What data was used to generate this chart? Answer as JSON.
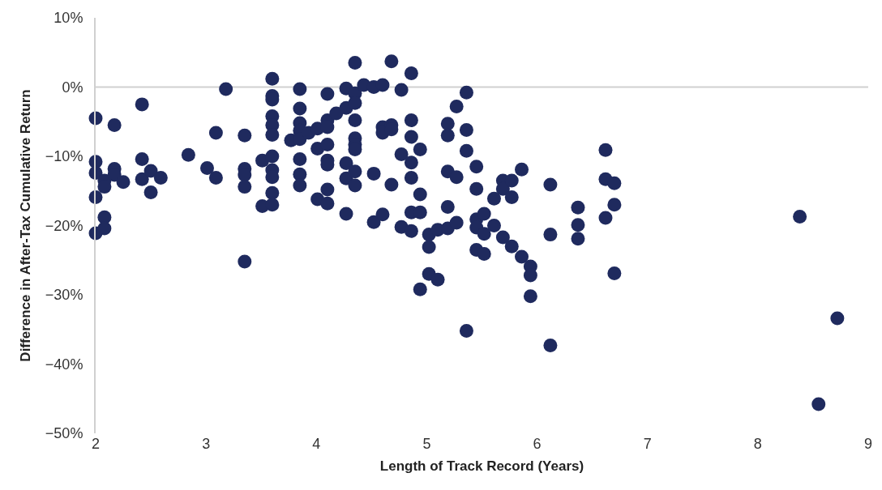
{
  "chart_data": {
    "type": "scatter",
    "xlabel": "Length of Track Record (Years)",
    "ylabel": "Difference in After-Tax Cumulative Return",
    "xlim": [
      2,
      9
    ],
    "xticks": [
      2,
      3,
      4,
      5,
      6,
      7,
      8,
      9
    ],
    "ylim": [
      -50,
      10
    ],
    "yticks": [
      {
        "value": 10,
        "label": "10%"
      },
      {
        "value": 0,
        "label": "0%"
      },
      {
        "value": -10,
        "label": "−10%"
      },
      {
        "value": -20,
        "label": "−20%"
      },
      {
        "value": -30,
        "label": "−30%"
      },
      {
        "value": -40,
        "label": "−40%"
      },
      {
        "value": -50,
        "label": "−50%"
      }
    ],
    "grid": false,
    "marker": "circle",
    "ref_lines": [
      {
        "axis": "y",
        "value": 0,
        "color": "#d0d0d0"
      }
    ],
    "series": [
      {
        "color": "#1f2a5e",
        "x": [
          2.0,
          2.0,
          2.0,
          2.0,
          2.0,
          2.08,
          2.08,
          2.08,
          2.08,
          2.17,
          2.17,
          2.17,
          2.25,
          2.42,
          2.42,
          2.42,
          2.5,
          2.5,
          2.59,
          2.84,
          3.01,
          3.09,
          3.09,
          3.18,
          3.35,
          3.35,
          3.35,
          3.35,
          3.35,
          3.51,
          3.51,
          3.6,
          3.6,
          3.6,
          3.6,
          3.6,
          3.6,
          3.6,
          3.6,
          3.6,
          3.6,
          3.6,
          3.77,
          3.85,
          3.85,
          3.85,
          3.85,
          3.85,
          3.85,
          3.85,
          3.85,
          3.93,
          4.01,
          4.01,
          4.01,
          4.1,
          4.1,
          4.1,
          4.1,
          4.1,
          4.1,
          4.1,
          4.1,
          4.18,
          4.27,
          4.27,
          4.27,
          4.27,
          4.27,
          4.35,
          4.35,
          4.35,
          4.35,
          4.35,
          4.35,
          4.35,
          4.35,
          4.35,
          4.43,
          4.52,
          4.52,
          4.52,
          4.6,
          4.6,
          4.6,
          4.6,
          4.68,
          4.68,
          4.68,
          4.68,
          4.77,
          4.77,
          4.77,
          4.86,
          4.86,
          4.86,
          4.86,
          4.86,
          4.86,
          4.86,
          4.94,
          4.94,
          4.94,
          4.94,
          5.02,
          5.02,
          5.02,
          5.1,
          5.1,
          5.19,
          5.19,
          5.19,
          5.19,
          5.19,
          5.27,
          5.27,
          5.27,
          5.36,
          5.36,
          5.36,
          5.36,
          5.45,
          5.45,
          5.45,
          5.45,
          5.45,
          5.52,
          5.52,
          5.52,
          5.61,
          5.61,
          5.69,
          5.69,
          5.69,
          5.77,
          5.77,
          5.77,
          5.86,
          5.86,
          5.94,
          5.94,
          5.94,
          6.12,
          6.12,
          6.12,
          6.37,
          6.37,
          6.37,
          6.62,
          6.62,
          6.62,
          6.7,
          6.7,
          6.7,
          8.38,
          8.55,
          8.72
        ],
        "values": [
          -4.5,
          -10.8,
          -12.4,
          -15.9,
          -21.1,
          -13.5,
          -14.4,
          -18.8,
          -20.4,
          -5.5,
          -11.8,
          -12.7,
          -13.7,
          -2.5,
          -10.4,
          -13.3,
          -12.1,
          -15.2,
          -13.1,
          -9.8,
          -11.7,
          -6.6,
          -13.1,
          -0.3,
          -7.0,
          -11.8,
          -12.7,
          -14.4,
          -25.2,
          -10.6,
          -17.2,
          1.2,
          -1.3,
          -1.8,
          -4.2,
          -5.5,
          -6.9,
          -10.0,
          -12.0,
          -13.0,
          -15.3,
          -17.0,
          -7.7,
          -0.3,
          -3.1,
          -5.2,
          -6.3,
          -7.5,
          -10.4,
          -12.6,
          -14.2,
          -6.6,
          -6.0,
          -8.9,
          -16.2,
          -1.0,
          -4.8,
          -5.8,
          -8.3,
          -10.6,
          -11.2,
          -14.8,
          -16.8,
          -3.8,
          -0.2,
          -3.0,
          -11.0,
          -13.2,
          -18.3,
          3.5,
          -0.9,
          -2.3,
          -4.8,
          -7.4,
          -8.3,
          -9.0,
          -12.2,
          -14.2,
          0.3,
          0.0,
          -12.5,
          -19.5,
          0.3,
          -5.8,
          -6.6,
          -18.4,
          3.7,
          -5.5,
          -6.1,
          -14.1,
          -0.4,
          -9.7,
          -20.2,
          2.0,
          -4.8,
          -7.2,
          -10.9,
          -13.1,
          -18.1,
          -20.8,
          -9.0,
          -15.5,
          -18.1,
          -29.2,
          -21.3,
          -23.1,
          -27.0,
          -20.6,
          -27.8,
          -5.3,
          -7.0,
          -12.2,
          -17.3,
          -20.4,
          -2.8,
          -13.0,
          -19.6,
          -0.8,
          -6.2,
          -9.2,
          -35.2,
          -11.5,
          -14.7,
          -19.1,
          -20.3,
          -23.5,
          -18.3,
          -21.2,
          -24.1,
          -16.1,
          -20.0,
          -13.5,
          -14.7,
          -21.7,
          -13.5,
          -15.9,
          -23.0,
          -11.9,
          -24.5,
          -25.9,
          -27.2,
          -30.2,
          -14.1,
          -21.3,
          -37.3,
          -17.4,
          -19.9,
          -21.9,
          -9.1,
          -13.3,
          -18.9,
          -13.9,
          -17.0,
          -26.9,
          -18.7,
          -45.8,
          -33.4
        ]
      }
    ]
  }
}
